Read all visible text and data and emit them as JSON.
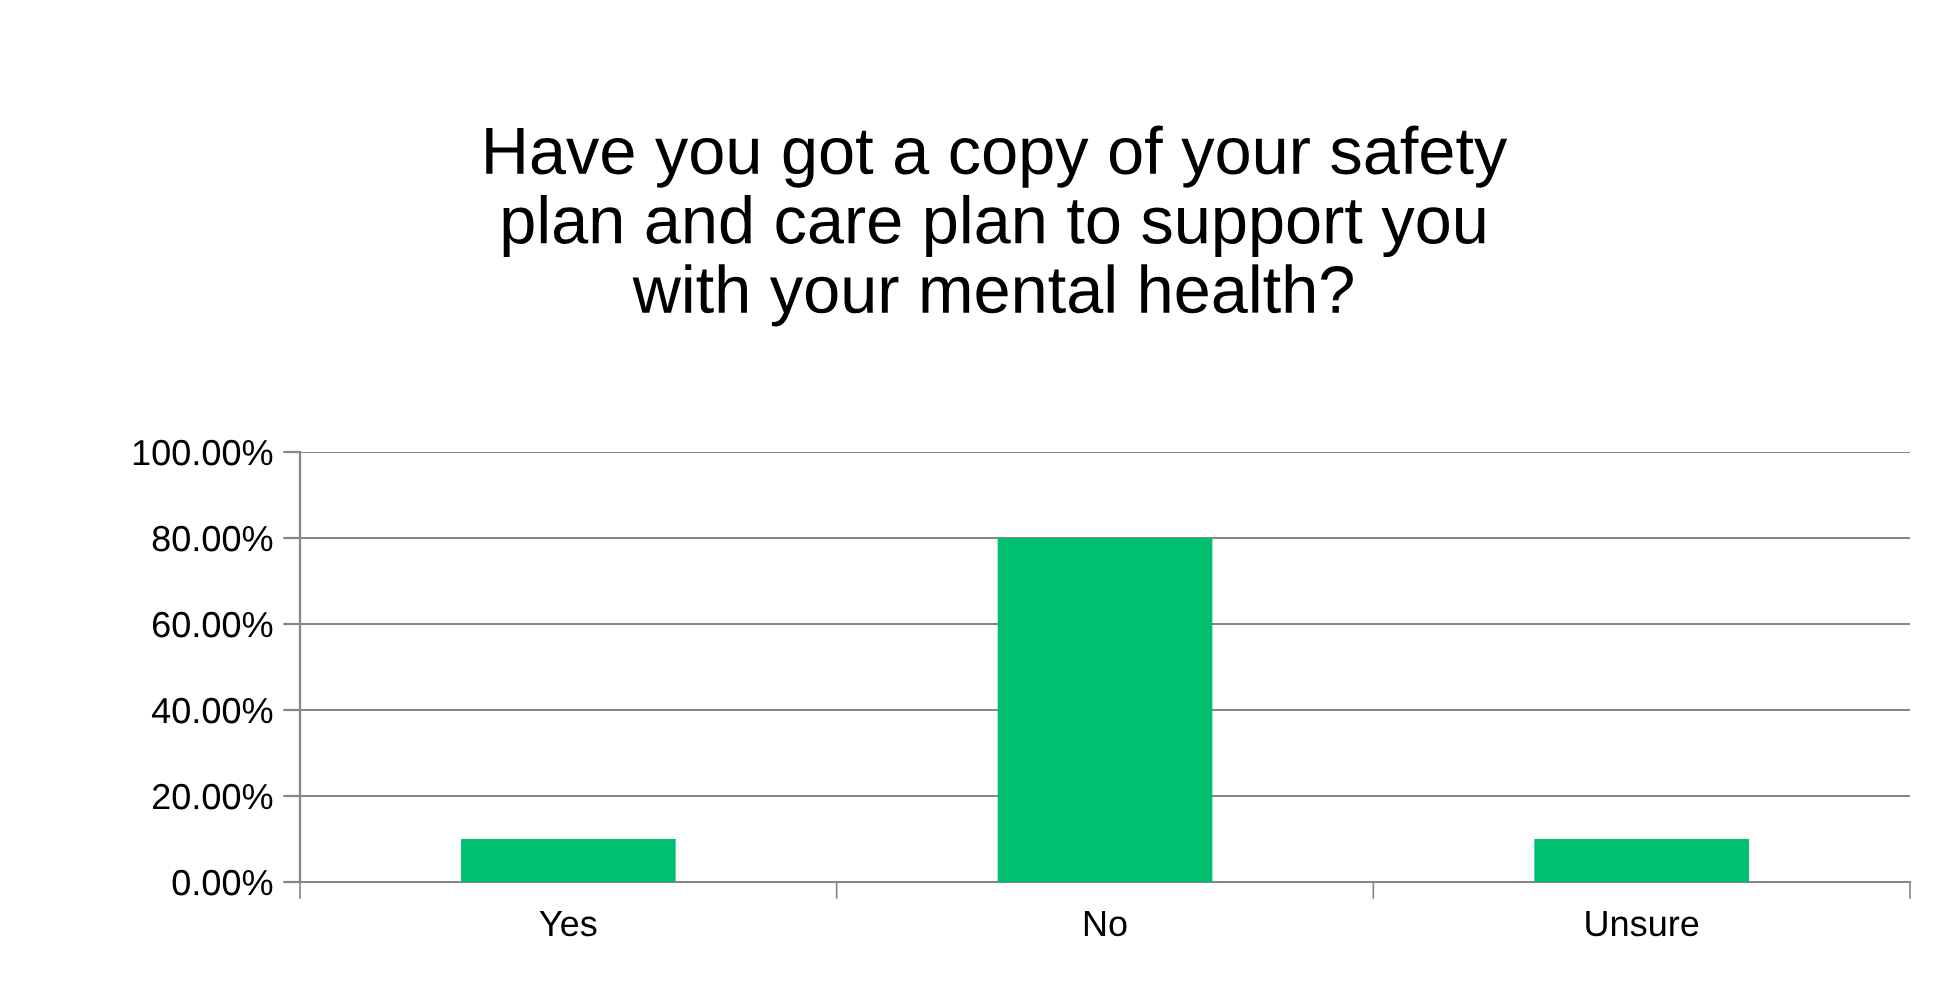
{
  "chart_data": {
    "type": "bar",
    "title": "Have you got a copy of your safety\nplan and care plan to support you\nwith your mental health?",
    "categories": [
      "Yes",
      "No",
      "Unsure"
    ],
    "values": [
      10,
      80,
      10
    ],
    "color": "#00c070",
    "ylim": [
      0,
      100
    ],
    "yticks": [
      {
        "value": 0,
        "label": "0.00%"
      },
      {
        "value": 20,
        "label": "20.00%"
      },
      {
        "value": 40,
        "label": "40.00%"
      },
      {
        "value": 60,
        "label": "60.00%"
      },
      {
        "value": 80,
        "label": "80.00%"
      },
      {
        "value": 100,
        "label": "100.00%"
      }
    ],
    "grid": "y",
    "legend": false
  }
}
